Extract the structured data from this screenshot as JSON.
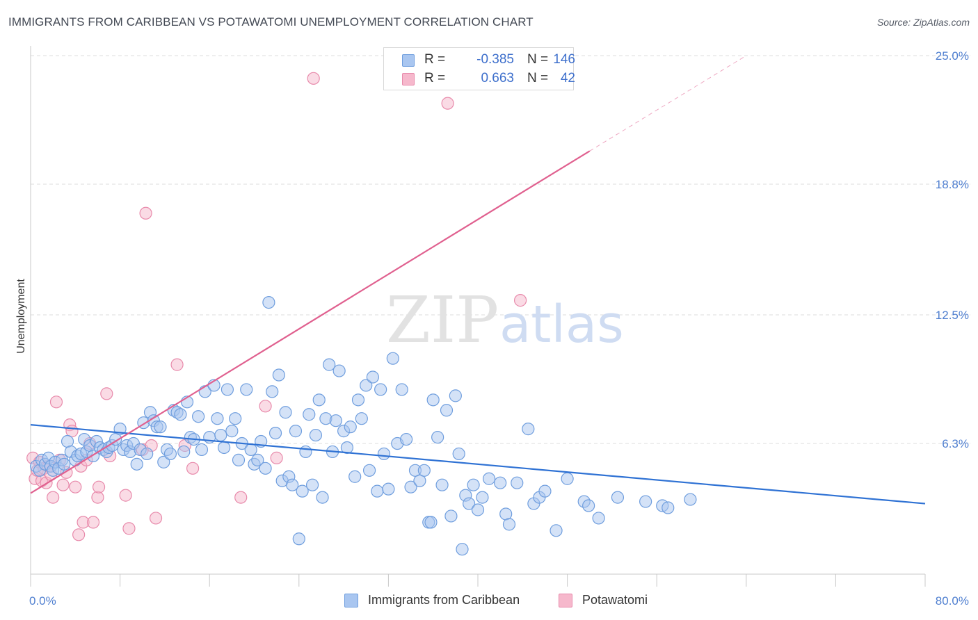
{
  "header": {
    "title": "IMMIGRANTS FROM CARIBBEAN VS POTAWATOMI UNEMPLOYMENT CORRELATION CHART",
    "source": "Source: ZipAtlas.com"
  },
  "watermark": {
    "zip": "ZIP",
    "atlas": "atlas"
  },
  "legend_top": {
    "rows": [
      {
        "r_label": "R =",
        "r_value": "-0.385",
        "n_label": "N =",
        "n_value": "146"
      },
      {
        "r_label": "R =",
        "r_value": "0.663",
        "n_label": "N =",
        "n_value": "42"
      }
    ]
  },
  "legend_bottom": {
    "items": [
      {
        "label": "Immigrants from Caribbean"
      },
      {
        "label": "Potawatomi"
      }
    ]
  },
  "colors": {
    "blue_fill": "#a9c6f0",
    "blue_stroke": "#6f9ede",
    "blue_line": "#2f72d4",
    "pink_fill": "#f6b8cc",
    "pink_stroke": "#e88aab",
    "pink_line": "#e0608f",
    "tick_text": "#4f7fd0",
    "grid": "#dcdcdc"
  },
  "chart_data": {
    "type": "scatter",
    "title": "IMMIGRANTS FROM CARIBBEAN VS POTAWATOMI UNEMPLOYMENT CORRELATION CHART",
    "ylabel": "Unemployment",
    "xlabel": "",
    "xlim": [
      0,
      80
    ],
    "ylim": [
      0,
      25
    ],
    "x_tick_labels": [
      "0.0%",
      "80.0%"
    ],
    "y_ticks": [
      6.3,
      12.5,
      18.8,
      25.0
    ],
    "y_tick_labels": [
      "6.3%",
      "12.5%",
      "18.8%",
      "25.0%"
    ],
    "grid": "horizontal dashed",
    "legend_position": "top-center",
    "series": [
      {
        "name": "Immigrants from Caribbean",
        "R": -0.385,
        "N": 146,
        "trend": {
          "x": [
            0,
            80
          ],
          "y": [
            7.2,
            3.4
          ]
        },
        "points": [
          [
            0.5,
            5.2
          ],
          [
            0.8,
            5.0
          ],
          [
            1.0,
            5.5
          ],
          [
            1.3,
            5.3
          ],
          [
            1.6,
            5.6
          ],
          [
            1.8,
            5.2
          ],
          [
            2.0,
            5.0
          ],
          [
            2.2,
            5.4
          ],
          [
            2.5,
            5.1
          ],
          [
            2.8,
            5.5
          ],
          [
            3.0,
            5.3
          ],
          [
            3.3,
            6.4
          ],
          [
            3.6,
            5.9
          ],
          [
            4.0,
            5.5
          ],
          [
            4.2,
            5.7
          ],
          [
            4.5,
            5.8
          ],
          [
            4.8,
            6.5
          ],
          [
            5.0,
            5.9
          ],
          [
            5.3,
            6.2
          ],
          [
            5.6,
            5.7
          ],
          [
            5.9,
            6.4
          ],
          [
            6.2,
            6.1
          ],
          [
            6.5,
            6.0
          ],
          [
            6.8,
            5.9
          ],
          [
            7.0,
            6.1
          ],
          [
            7.3,
            6.2
          ],
          [
            7.6,
            6.5
          ],
          [
            8.0,
            7.0
          ],
          [
            8.3,
            6.0
          ],
          [
            8.6,
            6.2
          ],
          [
            8.9,
            5.9
          ],
          [
            9.2,
            6.3
          ],
          [
            9.5,
            5.3
          ],
          [
            9.8,
            6.0
          ],
          [
            10.1,
            7.3
          ],
          [
            10.4,
            5.8
          ],
          [
            10.7,
            7.8
          ],
          [
            11.0,
            7.4
          ],
          [
            11.3,
            7.1
          ],
          [
            11.6,
            7.1
          ],
          [
            11.9,
            5.4
          ],
          [
            12.2,
            6.0
          ],
          [
            12.5,
            5.8
          ],
          [
            12.8,
            7.9
          ],
          [
            13.1,
            7.8
          ],
          [
            13.4,
            7.7
          ],
          [
            13.7,
            5.9
          ],
          [
            14.0,
            8.3
          ],
          [
            14.3,
            6.6
          ],
          [
            14.6,
            6.5
          ],
          [
            15.0,
            7.6
          ],
          [
            15.3,
            6.0
          ],
          [
            15.6,
            8.8
          ],
          [
            16.0,
            6.6
          ],
          [
            16.4,
            9.1
          ],
          [
            16.7,
            7.5
          ],
          [
            17.0,
            6.7
          ],
          [
            17.3,
            6.1
          ],
          [
            17.6,
            8.9
          ],
          [
            18.0,
            6.9
          ],
          [
            18.3,
            7.5
          ],
          [
            18.6,
            5.5
          ],
          [
            18.9,
            6.3
          ],
          [
            19.3,
            8.9
          ],
          [
            19.7,
            6.0
          ],
          [
            20.0,
            5.3
          ],
          [
            20.3,
            5.5
          ],
          [
            20.6,
            6.4
          ],
          [
            21.0,
            5.1
          ],
          [
            21.3,
            13.1
          ],
          [
            21.6,
            8.8
          ],
          [
            21.9,
            6.8
          ],
          [
            22.2,
            9.6
          ],
          [
            22.5,
            4.5
          ],
          [
            22.8,
            7.8
          ],
          [
            23.1,
            4.7
          ],
          [
            23.4,
            4.3
          ],
          [
            23.7,
            6.9
          ],
          [
            24.0,
            1.7
          ],
          [
            24.3,
            4.0
          ],
          [
            24.6,
            5.9
          ],
          [
            24.9,
            7.7
          ],
          [
            25.2,
            4.3
          ],
          [
            25.5,
            6.7
          ],
          [
            25.8,
            8.4
          ],
          [
            26.1,
            3.7
          ],
          [
            26.4,
            7.5
          ],
          [
            26.7,
            10.1
          ],
          [
            27.0,
            5.9
          ],
          [
            27.3,
            7.4
          ],
          [
            27.6,
            9.8
          ],
          [
            28.0,
            6.9
          ],
          [
            28.3,
            6.1
          ],
          [
            28.6,
            7.1
          ],
          [
            29.0,
            4.7
          ],
          [
            29.3,
            8.4
          ],
          [
            29.6,
            7.5
          ],
          [
            30.0,
            9.1
          ],
          [
            30.3,
            5.0
          ],
          [
            30.6,
            9.5
          ],
          [
            31.0,
            4.0
          ],
          [
            31.3,
            8.9
          ],
          [
            31.6,
            5.8
          ],
          [
            32.0,
            4.1
          ],
          [
            32.4,
            10.4
          ],
          [
            32.8,
            6.3
          ],
          [
            33.2,
            8.9
          ],
          [
            33.6,
            6.5
          ],
          [
            34.0,
            4.2
          ],
          [
            34.4,
            5.0
          ],
          [
            34.8,
            4.5
          ],
          [
            35.2,
            5.0
          ],
          [
            35.6,
            2.5
          ],
          [
            35.8,
            2.5
          ],
          [
            36.0,
            8.4
          ],
          [
            36.4,
            6.6
          ],
          [
            36.8,
            4.3
          ],
          [
            37.2,
            7.9
          ],
          [
            37.6,
            2.8
          ],
          [
            38.0,
            8.6
          ],
          [
            38.3,
            5.8
          ],
          [
            38.6,
            1.2
          ],
          [
            38.9,
            3.8
          ],
          [
            39.2,
            3.4
          ],
          [
            39.6,
            4.3
          ],
          [
            40.0,
            3.1
          ],
          [
            40.4,
            3.7
          ],
          [
            41.0,
            4.6
          ],
          [
            42.0,
            4.4
          ],
          [
            42.5,
            2.9
          ],
          [
            42.8,
            2.4
          ],
          [
            43.5,
            4.4
          ],
          [
            44.5,
            7.0
          ],
          [
            45.0,
            3.4
          ],
          [
            45.5,
            3.7
          ],
          [
            46.0,
            4.0
          ],
          [
            47.0,
            2.1
          ],
          [
            48.0,
            4.6
          ],
          [
            49.5,
            3.5
          ],
          [
            49.9,
            3.3
          ],
          [
            50.8,
            2.7
          ],
          [
            52.5,
            3.7
          ],
          [
            55.0,
            3.5
          ],
          [
            56.5,
            3.3
          ],
          [
            57.0,
            3.2
          ],
          [
            59.0,
            3.6
          ]
        ]
      },
      {
        "name": "Potawatomi",
        "R": 0.663,
        "N": 42,
        "trend": {
          "x": [
            0,
            50
          ],
          "y": [
            3.9,
            20.4
          ]
        },
        "trend_extension": {
          "x": [
            50,
            64
          ],
          "y": [
            20.4,
            25.0
          ]
        },
        "points": [
          [
            0.2,
            5.6
          ],
          [
            0.4,
            4.6
          ],
          [
            0.6,
            5.0
          ],
          [
            0.8,
            5.4
          ],
          [
            1.0,
            4.5
          ],
          [
            1.2,
            5.1
          ],
          [
            1.4,
            4.4
          ],
          [
            1.6,
            5.2
          ],
          [
            1.8,
            4.8
          ],
          [
            2.0,
            3.7
          ],
          [
            2.3,
            8.3
          ],
          [
            2.6,
            5.5
          ],
          [
            2.9,
            4.3
          ],
          [
            3.2,
            4.9
          ],
          [
            3.5,
            7.2
          ],
          [
            3.7,
            6.9
          ],
          [
            4.0,
            4.2
          ],
          [
            4.3,
            1.9
          ],
          [
            4.5,
            5.2
          ],
          [
            4.7,
            2.5
          ],
          [
            5.0,
            5.5
          ],
          [
            5.3,
            6.3
          ],
          [
            5.6,
            2.5
          ],
          [
            6.0,
            3.7
          ],
          [
            6.1,
            4.2
          ],
          [
            6.8,
            8.7
          ],
          [
            7.1,
            5.7
          ],
          [
            8.5,
            3.8
          ],
          [
            8.8,
            2.2
          ],
          [
            10.0,
            6.0
          ],
          [
            10.3,
            17.4
          ],
          [
            10.8,
            6.2
          ],
          [
            11.2,
            2.7
          ],
          [
            13.1,
            10.1
          ],
          [
            13.8,
            6.2
          ],
          [
            14.5,
            5.1
          ],
          [
            18.8,
            3.7
          ],
          [
            21.0,
            8.1
          ],
          [
            22.0,
            5.6
          ],
          [
            25.3,
            23.9
          ],
          [
            37.3,
            22.7
          ],
          [
            43.8,
            13.2
          ]
        ]
      }
    ]
  }
}
